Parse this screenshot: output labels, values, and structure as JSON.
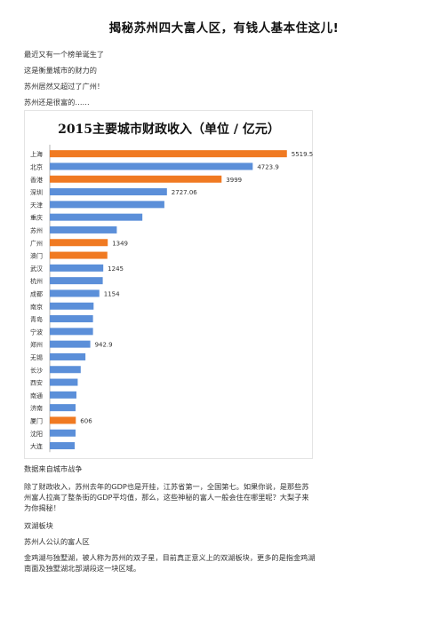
{
  "document": {
    "title": "揭秘苏州四大富人区，有钱人基本住这儿!",
    "intro": [
      "最近又有一个榜单诞生了",
      "这是衡量城市的财力的",
      "苏州居然又超过了广州！",
      "苏州还是很富的……"
    ],
    "source_line": "数据来自城市战争",
    "paragraph_1": "除了财政收入，苏州去年的GDP也是开挂，江苏省第一，全国第七。如果你说，是那些苏州富人拉高了整条街的GDP平均值，那么，这些神秘的富人一般会住在哪里呢？大梨子来为你揭秘！",
    "section_heading": "双湖板块",
    "section_subheading": "苏州人公认的富人区",
    "paragraph_2": "金鸡湖与独墅湖，被人称为苏州的双子星，目前真正意义上的双湖板块，更多的是指金鸡湖南面及独墅湖北部湖段这一块区域。"
  },
  "chart_data": {
    "type": "bar",
    "orientation": "horizontal",
    "title": "2015主要城市财政收入（单位 / 亿元）",
    "categories": [
      "上海",
      "北京",
      "香港",
      "深圳",
      "天津",
      "重庆",
      "苏州",
      "广州",
      "澳门",
      "武汉",
      "杭州",
      "成都",
      "南京",
      "青岛",
      "宁波",
      "郑州",
      "无锡",
      "长沙",
      "西安",
      "南通",
      "济南",
      "厦门",
      "沈阳",
      "大连"
    ],
    "values": [
      5519.5,
      4723.9,
      3999,
      2727.06,
      2667,
      2155,
      1560,
      1349,
      1340,
      1245,
      1233,
      1154,
      1020,
      1006,
      1006,
      942.9,
      830,
      720,
      650,
      620,
      600,
      606,
      600,
      580
    ],
    "data_labels": [
      "5519.5",
      "4723.9",
      "3999",
      "2727.06",
      "",
      "",
      "",
      "1349",
      "",
      "1245",
      "",
      "1154",
      "",
      "",
      "",
      "942.9",
      "",
      "",
      "",
      "",
      "",
      "606",
      "",
      ""
    ],
    "highlighted": [
      true,
      false,
      true,
      false,
      false,
      false,
      false,
      true,
      true,
      false,
      false,
      false,
      false,
      false,
      false,
      false,
      false,
      false,
      false,
      false,
      false,
      true,
      false,
      false
    ],
    "colors": {
      "highlight": "#f07a22",
      "normal": "#5b8fd9"
    },
    "xlim": [
      0,
      6000
    ],
    "grid": false,
    "legend": "none"
  }
}
